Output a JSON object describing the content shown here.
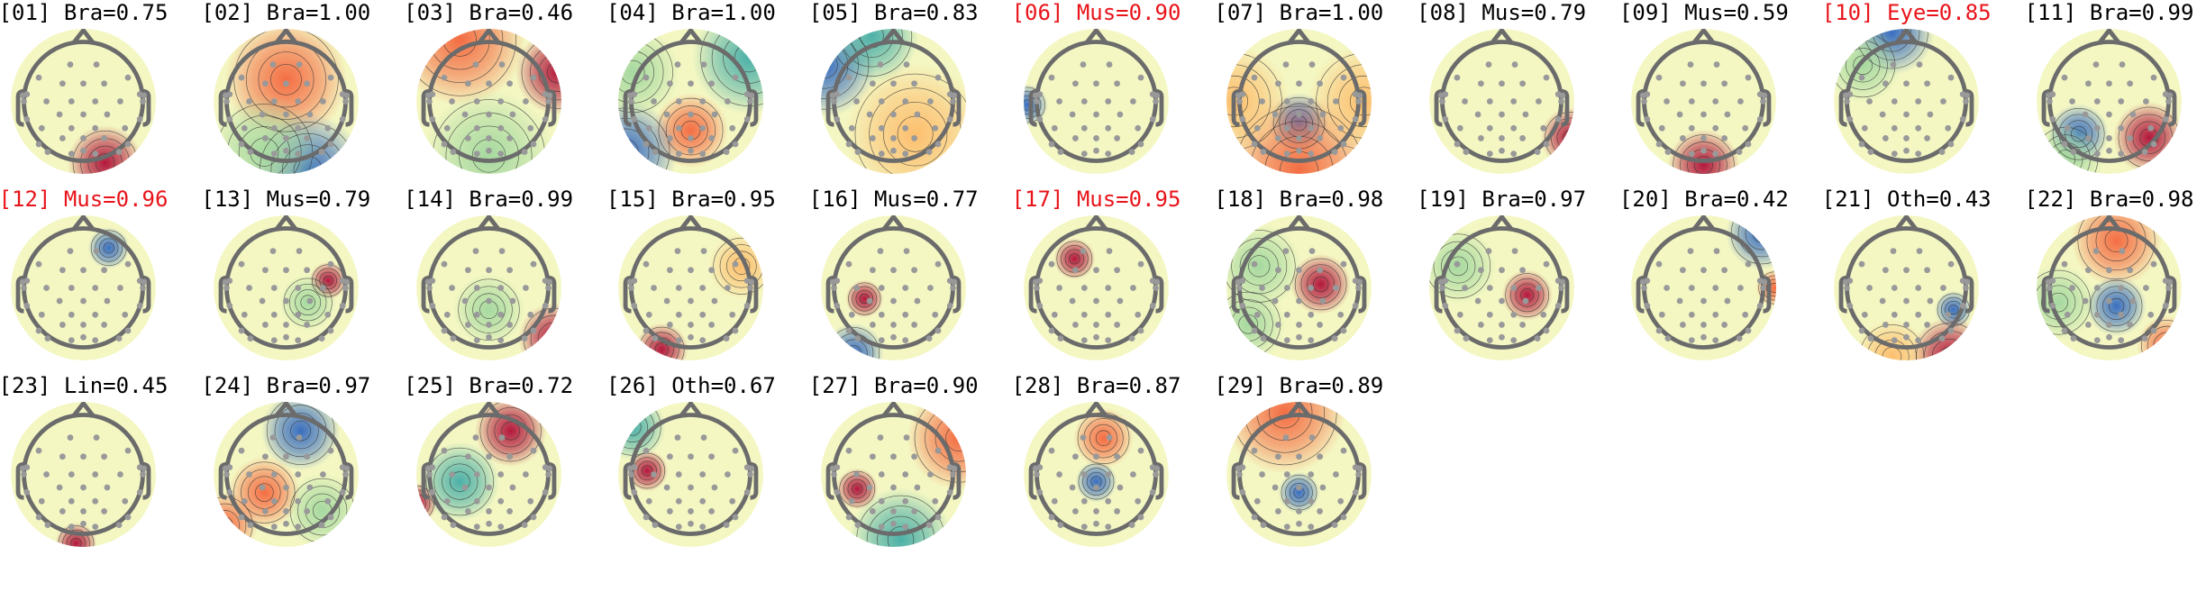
{
  "chart_data": {
    "type": "heatmap",
    "subtype": "scalp-topomap-grid",
    "colormap": "Spectral_r (blue = negative, yellow = neutral, red = positive)",
    "highlight_color": "#e8141a",
    "components": [
      {
        "title": "[01] Bra=0.75",
        "highlight": false
      },
      {
        "title": "[02] Bra=1.00",
        "highlight": false
      },
      {
        "title": "[03] Bra=0.46",
        "highlight": false
      },
      {
        "title": "[04] Bra=1.00",
        "highlight": false
      },
      {
        "title": "[05] Bra=0.83",
        "highlight": false
      },
      {
        "title": "[06] Mus=0.90",
        "highlight": true
      },
      {
        "title": "[07] Bra=1.00",
        "highlight": false
      },
      {
        "title": "[08] Mus=0.79",
        "highlight": false
      },
      {
        "title": "[09] Mus=0.59",
        "highlight": false
      },
      {
        "title": "[10] Eye=0.85",
        "highlight": true
      },
      {
        "title": "[11] Bra=0.99",
        "highlight": false
      },
      {
        "title": "[12] Mus=0.96",
        "highlight": true
      },
      {
        "title": "[13] Mus=0.79",
        "highlight": false
      },
      {
        "title": "[14] Bra=0.99",
        "highlight": false
      },
      {
        "title": "[15] Bra=0.95",
        "highlight": false
      },
      {
        "title": "[16] Mus=0.77",
        "highlight": false
      },
      {
        "title": "[17] Mus=0.95",
        "highlight": true
      },
      {
        "title": "[18] Bra=0.98",
        "highlight": false
      },
      {
        "title": "[19] Bra=0.97",
        "highlight": false
      },
      {
        "title": "[20] Bra=0.42",
        "highlight": false
      },
      {
        "title": "[21] Oth=0.43",
        "highlight": false
      },
      {
        "title": "[22] Bra=0.98",
        "highlight": false
      },
      {
        "title": "[23] Lin=0.45",
        "highlight": false
      },
      {
        "title": "[24] Bra=0.97",
        "highlight": false
      },
      {
        "title": "[25] Bra=0.72",
        "highlight": false
      },
      {
        "title": "[26] Oth=0.67",
        "highlight": false
      },
      {
        "title": "[27] Bra=0.90",
        "highlight": false
      },
      {
        "title": "[28] Bra=0.87",
        "highlight": false
      },
      {
        "title": "[29] Bra=0.89",
        "highlight": false
      }
    ]
  }
}
